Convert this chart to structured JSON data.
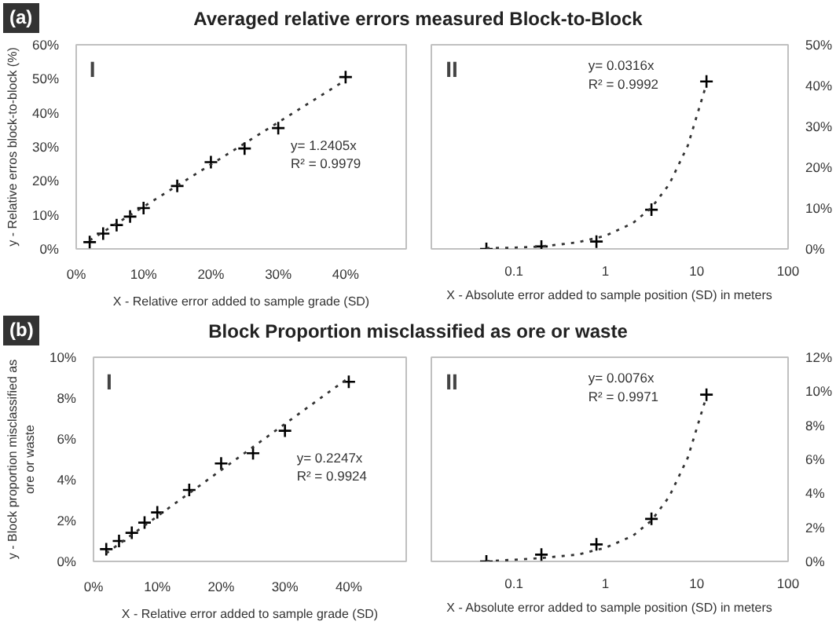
{
  "chart_data": [
    {
      "type": "scatter",
      "title": "Averaged relative errors measured Block-to-Block",
      "xlabel": "X - Relative error added to sample grade (SD)",
      "ylabel": "y - Relative erros block-to-block (%)",
      "annotations": [
        "(a)",
        "I",
        "y= 1.2405x",
        "R² = 0.9979"
      ],
      "x": [
        2,
        4,
        6,
        8,
        10,
        15,
        20,
        25,
        30,
        40
      ],
      "series": [
        {
          "color": "#000000",
          "values": [
            2,
            4.5,
            7,
            9.5,
            12,
            18.5,
            25.5,
            29.5,
            35.5,
            50.5
          ]
        },
        {
          "type": "line",
          "marker": "none",
          "color": "#333333",
          "line_style": "dotted",
          "x": [
            2,
            40
          ],
          "values": [
            2.5,
            49.6
          ]
        }
      ],
      "xlim": [
        0,
        49
      ],
      "xticks": [
        {
          "value": 0,
          "label": "0%"
        },
        {
          "value": 10,
          "label": "10%"
        },
        {
          "value": 20,
          "label": "20%"
        },
        {
          "value": 30,
          "label": "30%"
        },
        {
          "value": 40,
          "label": "40%"
        }
      ],
      "ylim": [
        0,
        60
      ],
      "yticks": [
        {
          "value": 0,
          "label": "0%"
        },
        {
          "value": 10,
          "label": "10%"
        },
        {
          "value": 20,
          "label": "20%"
        },
        {
          "value": 30,
          "label": "30%"
        },
        {
          "value": 40,
          "label": "40%"
        },
        {
          "value": 50,
          "label": "50%"
        },
        {
          "value": 60,
          "label": "60%"
        }
      ],
      "marker": "cross",
      "grid": false
    },
    {
      "type": "scatter",
      "xlabel": "X - Absolute error added to sample position (SD) in meters",
      "annotations": [
        "II",
        "y= 0.0316x",
        "R² = 0.9992"
      ],
      "x": [
        0.05,
        0.2,
        0.8,
        3.2,
        12.8
      ],
      "series": [
        {
          "axis": "y2",
          "color": "#000000",
          "values": [
            0,
            0.6,
            1.8,
            9.6,
            41
          ]
        },
        {
          "type": "line",
          "marker": "none",
          "axis": "y2",
          "color": "#333333",
          "line_style": "dotted",
          "x": [
            0.05,
            0.1,
            0.2,
            0.5,
            1,
            2,
            3.2,
            5,
            8,
            12.8
          ],
          "values": [
            0.2,
            0.3,
            0.6,
            1.6,
            3.2,
            6.3,
            10.1,
            15.8,
            25.3,
            40.4
          ]
        }
      ],
      "log": "x",
      "xlim": [
        0.0125,
        100
      ],
      "xticks": [
        0.1,
        1,
        10,
        100
      ],
      "y2lim": [
        0,
        50
      ],
      "y2ticks": [
        {
          "value": 0,
          "label": "0%"
        },
        {
          "value": 10,
          "label": "10%"
        },
        {
          "value": 20,
          "label": "20%"
        },
        {
          "value": 30,
          "label": "30%"
        },
        {
          "value": 40,
          "label": "40%"
        },
        {
          "value": 50,
          "label": "50%"
        }
      ],
      "marker": "cross",
      "grid": false
    },
    {
      "type": "scatter",
      "title": "Block Proportion misclassified as ore or waste",
      "xlabel": "X - Relative error added to sample grade (SD)",
      "ylabel": "y - Block proportion misclassified as\nore or waste",
      "annotations": [
        "(b)",
        "I",
        "y= 0.2247x",
        "R² = 0.9924"
      ],
      "x": [
        2,
        4,
        6,
        8,
        10,
        15,
        20,
        25,
        30,
        40
      ],
      "series": [
        {
          "color": "#000000",
          "values": [
            0.6,
            1.0,
            1.4,
            1.9,
            2.4,
            3.5,
            4.8,
            5.3,
            6.4,
            8.8
          ]
        },
        {
          "type": "line",
          "marker": "none",
          "color": "#333333",
          "line_style": "dotted",
          "x": [
            2,
            40
          ],
          "values": [
            0.4,
            9.0
          ]
        }
      ],
      "xlim": [
        0,
        49
      ],
      "xticks": [
        {
          "value": 0,
          "label": "0%"
        },
        {
          "value": 10,
          "label": "10%"
        },
        {
          "value": 20,
          "label": "20%"
        },
        {
          "value": 30,
          "label": "30%"
        },
        {
          "value": 40,
          "label": "40%"
        }
      ],
      "ylim": [
        0,
        10
      ],
      "yticks": [
        {
          "value": 0,
          "label": "0%"
        },
        {
          "value": 2,
          "label": "2%"
        },
        {
          "value": 4,
          "label": "4%"
        },
        {
          "value": 6,
          "label": "6%"
        },
        {
          "value": 8,
          "label": "8%"
        },
        {
          "value": 10,
          "label": "10%"
        }
      ],
      "marker": "cross",
      "grid": false
    },
    {
      "type": "scatter",
      "xlabel": "X - Absolute error added to sample position (SD) in meters",
      "annotations": [
        "II",
        "y= 0.0076x",
        "R² = 0.9971"
      ],
      "x": [
        0.05,
        0.2,
        0.8,
        3.2,
        12.8
      ],
      "series": [
        {
          "axis": "y2",
          "color": "#000000",
          "values": [
            0,
            0.4,
            1.0,
            2.5,
            9.8
          ]
        },
        {
          "type": "line",
          "marker": "none",
          "axis": "y2",
          "color": "#333333",
          "line_style": "dotted",
          "x": [
            0.05,
            0.1,
            0.2,
            0.5,
            1,
            2,
            3.2,
            5,
            8,
            12.8
          ],
          "values": [
            0.0,
            0.1,
            0.2,
            0.4,
            0.8,
            1.5,
            2.4,
            3.8,
            6.1,
            9.7
          ]
        }
      ],
      "log": "x",
      "xlim": [
        0.0125,
        100
      ],
      "xticks": [
        0.1,
        1,
        10,
        100
      ],
      "y2lim": [
        0,
        12
      ],
      "y2ticks": [
        {
          "value": 0,
          "label": "0%"
        },
        {
          "value": 2,
          "label": "2%"
        },
        {
          "value": 4,
          "label": "4%"
        },
        {
          "value": 6,
          "label": "6%"
        },
        {
          "value": 8,
          "label": "8%"
        },
        {
          "value": 10,
          "label": "10%"
        },
        {
          "value": 12,
          "label": "12%"
        }
      ],
      "marker": "cross",
      "grid": false
    }
  ]
}
